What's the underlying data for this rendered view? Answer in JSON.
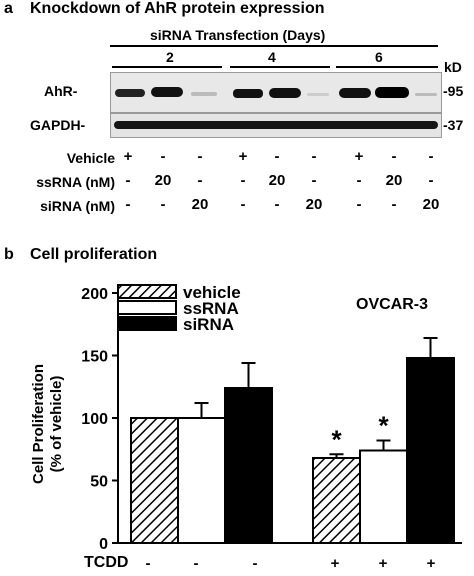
{
  "panel_a": {
    "letter": "a",
    "title": "Knockdown of AhR protein expression",
    "group_header": "siRNA Transfection (Days)",
    "days": [
      "2",
      "4",
      "6"
    ],
    "unit": "kD",
    "blots": [
      {
        "label": "AhR-",
        "marker": "-95"
      },
      {
        "label": "GAPDH-",
        "marker": "-37"
      }
    ],
    "treatment_rows": [
      {
        "label": "Vehicle",
        "values": [
          "+",
          "-",
          "-",
          "+",
          "-",
          "-",
          "+",
          "-",
          "-"
        ]
      },
      {
        "label": "ssRNA (nM)",
        "values": [
          "-",
          "20",
          "-",
          "-",
          "20",
          "-",
          "-",
          "20",
          "-"
        ]
      },
      {
        "label": "siRNA (nM)",
        "values": [
          "-",
          "-",
          "20",
          "-",
          "-",
          "20",
          "-",
          "-",
          "20"
        ]
      }
    ]
  },
  "panel_b": {
    "letter": "b",
    "title": "Cell proliferation",
    "cell_line": "OVCAR-3",
    "tcdd_label": "TCDD",
    "tcdd_values": [
      "-",
      "-",
      "-",
      "+",
      "+",
      "+"
    ]
  },
  "chart_data": {
    "type": "bar",
    "ylabel": "Cell Proliferation\n(% of vehicle)",
    "ylim": [
      0,
      200
    ],
    "yticks": [
      0,
      50,
      100,
      150,
      200
    ],
    "legend_position": "top-left",
    "categories": [
      "-TCDD",
      "+TCDD"
    ],
    "series": [
      {
        "name": "vehicle",
        "values": [
          100,
          68
        ],
        "errors": [
          0,
          3
        ],
        "fill": "hatch"
      },
      {
        "name": "ssRNA",
        "values": [
          100,
          74
        ],
        "errors": [
          12,
          8
        ],
        "fill": "#ffffff"
      },
      {
        "name": "siRNA",
        "values": [
          124,
          148
        ],
        "errors": [
          20,
          16
        ],
        "fill": "#000000"
      }
    ],
    "annotations": [
      {
        "text": "*",
        "series": "vehicle",
        "category": "+TCDD"
      },
      {
        "text": "*",
        "series": "ssRNA",
        "category": "+TCDD"
      }
    ]
  }
}
